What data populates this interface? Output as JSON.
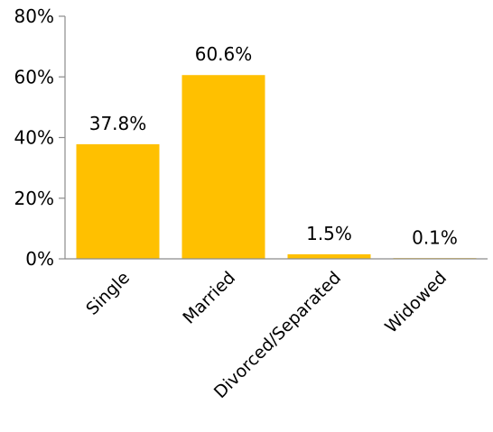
{
  "chart_data": {
    "type": "bar",
    "categories": [
      "Single",
      "Married",
      "Divorced/Separated",
      "Widowed"
    ],
    "values": [
      37.8,
      60.6,
      1.5,
      0.1
    ],
    "data_labels": [
      "37.8%",
      "60.6%",
      "1.5%",
      "0.1%"
    ],
    "yticks": [
      0,
      20,
      40,
      60,
      80
    ],
    "ytick_labels": [
      "0%",
      "20%",
      "40%",
      "60%",
      "80%"
    ],
    "ylim": [
      0,
      80
    ],
    "grid": false,
    "legend": "none",
    "bar_color": "#FFC000"
  }
}
